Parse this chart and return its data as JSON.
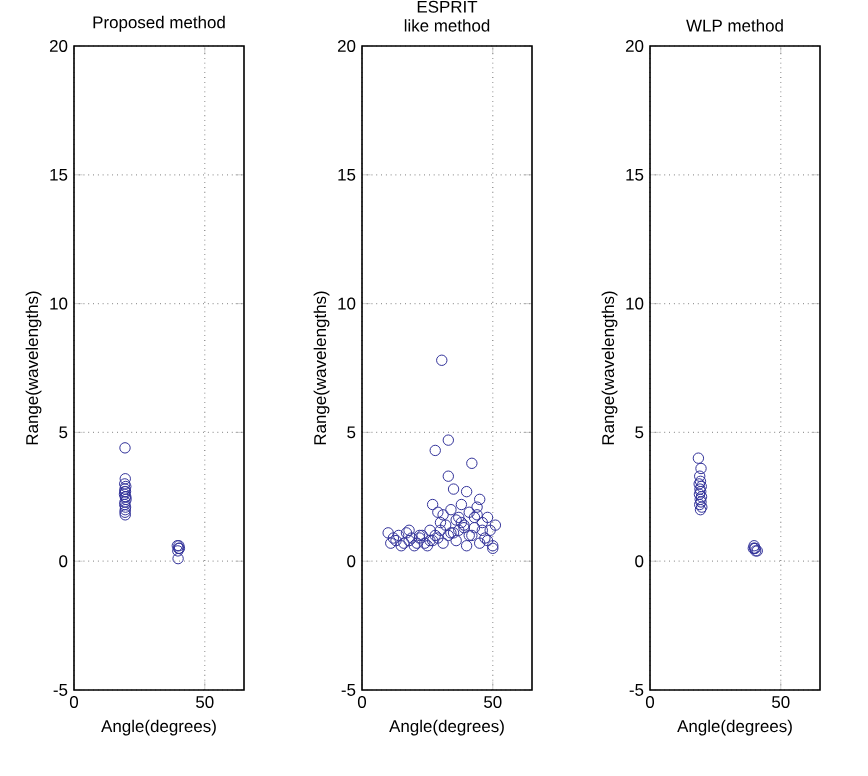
{
  "chart_data": [
    {
      "type": "scatter",
      "title": "Proposed method",
      "xlabel": "Angle(degrees)",
      "ylabel": "Range(wavelengths)",
      "xlim": [
        0,
        65
      ],
      "ylim": [
        -5,
        20
      ],
      "xticks": [
        0,
        50
      ],
      "yticks": [
        -5,
        0,
        5,
        10,
        15,
        20
      ],
      "grid": true,
      "marker": "circle",
      "series": [
        {
          "color": "#33339a",
          "x": [
            19.5,
            19.6,
            19.4,
            19.8,
            19.5,
            19.7,
            19.3,
            19.6,
            19.9,
            19.5,
            19.4,
            19.7,
            19.6,
            19.5,
            19.8,
            19.4,
            19.6,
            39.5,
            40.0,
            40.3,
            39.7,
            40.1,
            39.8
          ],
          "values": [
            4.4,
            3.2,
            3.0,
            2.9,
            2.8,
            2.7,
            2.6,
            2.5,
            2.4,
            2.3,
            2.2,
            2.1,
            2.0,
            1.9,
            2.5,
            2.7,
            1.8,
            0.6,
            0.5,
            0.5,
            0.4,
            0.6,
            0.1
          ]
        }
      ]
    },
    {
      "type": "scatter",
      "title": "ESPRIT",
      "subtitle": "like method",
      "xlabel": "Angle(degrees)",
      "ylabel": "Range(wavelengths)",
      "xlim": [
        0,
        65
      ],
      "ylim": [
        -5,
        20
      ],
      "xticks": [
        0,
        50
      ],
      "yticks": [
        -5,
        0,
        5,
        10,
        15,
        20
      ],
      "grid": true,
      "marker": "circle",
      "series": [
        {
          "color": "#33339a",
          "x": [
            30.5,
            28,
            33,
            42,
            33,
            35,
            40,
            45,
            27,
            29,
            31,
            34,
            36,
            38,
            39,
            41,
            43,
            44,
            46,
            48,
            49,
            50,
            51,
            47,
            45,
            43,
            41,
            37,
            35,
            32,
            30,
            28,
            26,
            24,
            22,
            20,
            18,
            16,
            14,
            12,
            10,
            11,
            13,
            15,
            17,
            19,
            21,
            23,
            25,
            27,
            29,
            31,
            33,
            36,
            38,
            40,
            42,
            44,
            46,
            48,
            50,
            34,
            37,
            39,
            30,
            26,
            22,
            18
          ],
          "values": [
            7.8,
            4.3,
            4.7,
            3.8,
            3.3,
            2.8,
            2.7,
            2.4,
            2.2,
            1.9,
            1.8,
            2.0,
            1.6,
            2.2,
            1.4,
            1.9,
            1.7,
            2.1,
            1.5,
            1.7,
            1.2,
            0.6,
            1.4,
            0.9,
            0.7,
            1.3,
            1.0,
            1.2,
            1.1,
            1.4,
            1.2,
            1.0,
            0.8,
            0.7,
            0.9,
            0.6,
            0.8,
            0.7,
            1.0,
            0.9,
            1.1,
            0.7,
            0.8,
            0.6,
            1.1,
            0.9,
            0.7,
            1.0,
            0.6,
            0.8,
            0.9,
            0.7,
            1.0,
            0.8,
            1.5,
            0.6,
            1.0,
            1.8,
            1.2,
            0.8,
            0.5,
            1.1,
            1.7,
            1.3,
            1.5,
            1.2,
            1.0,
            1.2
          ]
        }
      ]
    },
    {
      "type": "scatter",
      "title": "WLP method",
      "xlabel": "Angle(degrees)",
      "ylabel": "Range(wavelengths)",
      "xlim": [
        0,
        65
      ],
      "ylim": [
        -5,
        20
      ],
      "xticks": [
        0,
        50
      ],
      "yticks": [
        -5,
        0,
        5,
        10,
        15,
        20
      ],
      "grid": true,
      "marker": "circle",
      "series": [
        {
          "color": "#33339a",
          "x": [
            18.5,
            19.5,
            19.0,
            19.3,
            18.8,
            19.6,
            19.1,
            19.4,
            18.9,
            19.7,
            19.2,
            19.5,
            19.0,
            19.8,
            19.3,
            39.5,
            40.0,
            40.4,
            39.8,
            40.2,
            41.0
          ],
          "values": [
            4.0,
            3.6,
            3.3,
            3.1,
            3.0,
            2.9,
            2.8,
            2.7,
            2.6,
            2.5,
            2.4,
            2.3,
            2.2,
            2.1,
            2.0,
            0.5,
            0.5,
            0.4,
            0.6,
            0.5,
            0.4
          ]
        }
      ]
    }
  ]
}
